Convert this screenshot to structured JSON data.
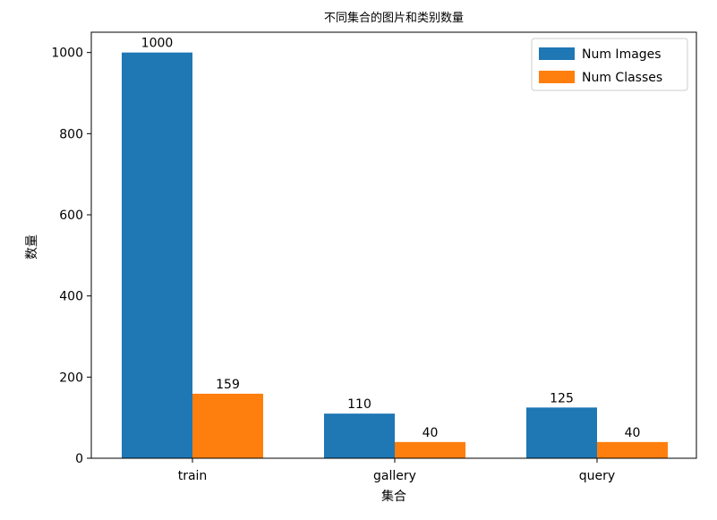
{
  "chart_data": {
    "type": "bar",
    "title": "不同集合的图片和类别数量",
    "xlabel": "集合",
    "ylabel": "数量",
    "categories": [
      "train",
      "gallery",
      "query"
    ],
    "series": [
      {
        "name": "Num Images",
        "color": "#1f77b4",
        "values": [
          1000,
          110,
          125
        ]
      },
      {
        "name": "Num Classes",
        "color": "#ff7f0e",
        "values": [
          159,
          40,
          40
        ]
      }
    ],
    "ylim": [
      0,
      1050
    ],
    "yticks": [
      0,
      200,
      400,
      600,
      800,
      1000
    ],
    "grid": false,
    "legend_position": "top-right"
  }
}
